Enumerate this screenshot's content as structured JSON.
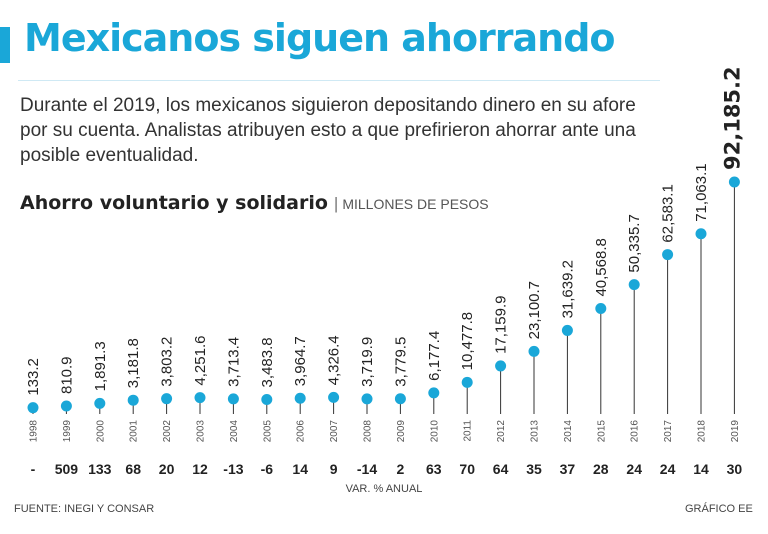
{
  "title": "Mexicanos siguen ahorrando",
  "subtitle": "Durante el 2019, los mexicanos siguieron depositando dinero en su afore por su cuenta. Analistas atribuyen esto a que prefirieron ahorrar ante una posible eventualidad.",
  "chart_title": "Ahorro voluntario y solidario",
  "chart_title_separator": "|",
  "chart_unit": "MILLONES DE PESOS",
  "source": "FUENTE: INEGI Y CONSAR",
  "credit": "GRÁFICO EE",
  "colors": {
    "accent": "#1aa7d8",
    "text": "#222222",
    "stem": "#333333"
  },
  "chart_data": {
    "type": "scatter",
    "title": "Ahorro voluntario y solidario",
    "ylabel": "MILLONES DE PESOS",
    "xlabel": "VAR. % ANUAL",
    "ylim": [
      0,
      92185.2
    ],
    "x": [
      "1998",
      "1999",
      "2000",
      "2001",
      "2002",
      "2003",
      "2004",
      "2005",
      "2006",
      "2007",
      "2008",
      "2009",
      "2010",
      "2011",
      "2012",
      "2013",
      "2014",
      "2015",
      "2016",
      "2017",
      "2018",
      "2019"
    ],
    "values": [
      133.2,
      810.9,
      1891.3,
      3181.8,
      3803.2,
      4251.6,
      3713.4,
      3483.8,
      3964.7,
      4326.4,
      3719.9,
      3779.5,
      6177.4,
      10477.8,
      17159.9,
      23100.7,
      31639.2,
      40568.8,
      50335.7,
      62583.1,
      71063.1,
      92185.2
    ],
    "value_labels": [
      "133.2",
      "810.9",
      "1,891.3",
      "3,181.8",
      "3,803.2",
      "4,251.6",
      "3,713.4",
      "3,483.8",
      "3,964.7",
      "4,326.4",
      "3,719.9",
      "3,779.5",
      "6,177.4",
      "10,477.8",
      "17,159.9",
      "23,100.7",
      "31,639.2",
      "40,568.8",
      "50,335.7",
      "62,583.1",
      "71,063.1",
      "92,185.2"
    ],
    "variation_labels": [
      "-",
      "509",
      "133",
      "68",
      "20",
      "12",
      "-13",
      "-6",
      "14",
      "9",
      "-14",
      "2",
      "63",
      "70",
      "64",
      "35",
      "37",
      "28",
      "24",
      "24",
      "14",
      "30"
    ],
    "variation_label": "VAR. % ANUAL",
    "highlight_last": true,
    "grid": false
  }
}
